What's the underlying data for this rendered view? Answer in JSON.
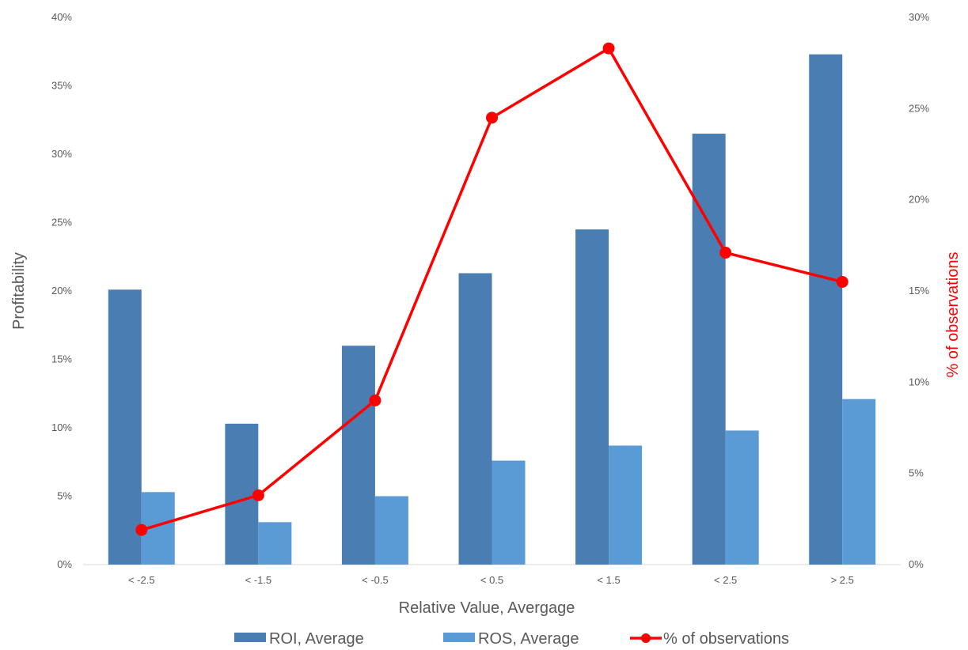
{
  "chart_data": {
    "type": "bar",
    "categories": [
      "< -2.5",
      "< -1.5",
      "< -0.5",
      "< 0.5",
      "< 1.5",
      "< 2.5",
      "> 2.5"
    ],
    "series": [
      {
        "name": "ROI, Average",
        "type": "bar",
        "axis": "left",
        "color": "#4a7db2",
        "values": [
          20.1,
          10.3,
          16.0,
          21.3,
          24.5,
          31.5,
          37.3
        ]
      },
      {
        "name": "ROS, Average",
        "type": "bar",
        "axis": "left",
        "color": "#5b9bd5",
        "values": [
          5.3,
          3.1,
          5.0,
          7.6,
          8.7,
          9.8,
          12.1
        ]
      },
      {
        "name": "% of observations",
        "type": "line",
        "axis": "right",
        "color": "#ff0000",
        "values": [
          1.9,
          3.8,
          9.0,
          24.5,
          28.3,
          17.1,
          15.5
        ]
      }
    ],
    "xlabel": "Relative Value, Avergage",
    "ylabel": "Profitability",
    "ylabel_right": "% of observations",
    "ylim": [
      0,
      40
    ],
    "ylim_right": [
      0,
      30
    ],
    "yticks": [
      "0%",
      "5%",
      "10%",
      "15%",
      "20%",
      "25%",
      "30%",
      "35%",
      "40%"
    ],
    "yticks_right": [
      "0%",
      "5%",
      "10%",
      "15%",
      "20%",
      "25%",
      "30%"
    ],
    "grid": false,
    "legend_position": "bottom",
    "title": ""
  }
}
